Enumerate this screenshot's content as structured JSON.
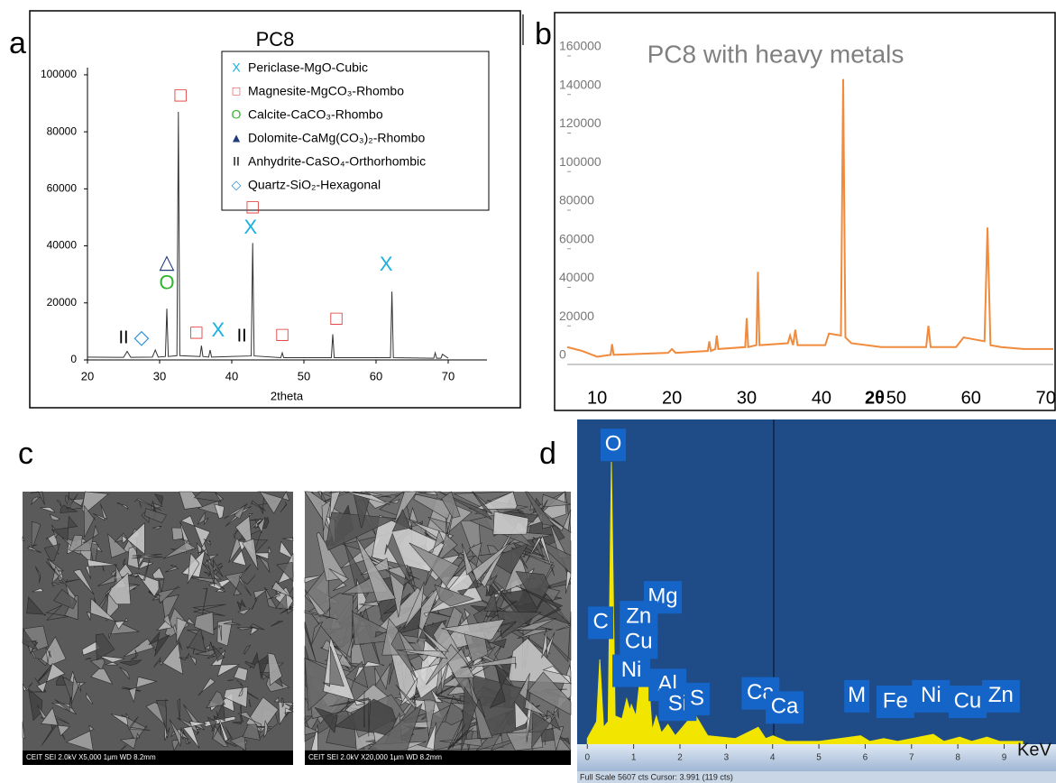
{
  "panels": {
    "c": "c",
    "sem_captions": [
      "CEIT    SEI   2.0kV   X5,000   1μm   WD 8.2mm",
      "CEIT    SEI   2.0kV   X20,000   1μm   WD 8.2mm"
    ]
  },
  "chart_data": [
    {
      "type": "line",
      "panel": "a",
      "title": "PC8",
      "xlabel": "2theta",
      "color": "#333333",
      "xlim": [
        20,
        75
      ],
      "ylim": [
        0,
        102500
      ],
      "xticks": [
        20,
        30,
        40,
        50,
        60,
        70
      ],
      "yticks": [
        0,
        20000,
        40000,
        60000,
        80000,
        100000
      ],
      "x": [
        20,
        25,
        25.5,
        26,
        29,
        29.4,
        29.8,
        30.8,
        31,
        31.2,
        32.4,
        32.6,
        32.8,
        35.6,
        35.8,
        36,
        36.8,
        37,
        37.2,
        42.7,
        42.9,
        43.1,
        46.8,
        47,
        47.2,
        53.8,
        54,
        54.2,
        62,
        62.2,
        62.4,
        68,
        68.2,
        68.4,
        69,
        69.2,
        70
      ],
      "values": [
        1000,
        900,
        3000,
        900,
        1000,
        3500,
        1000,
        1200,
        18000,
        1200,
        1500,
        87000,
        1500,
        1200,
        5000,
        1200,
        1000,
        3500,
        1000,
        1400,
        41000,
        1400,
        800,
        2500,
        800,
        800,
        9000,
        800,
        800,
        24000,
        800,
        600,
        2500,
        600,
        600,
        2000,
        600
      ],
      "legend": [
        {
          "symbol": "X",
          "color": "#1ab0e0",
          "text": "Periclase-MgO-Cubic"
        },
        {
          "symbol": "□",
          "color": "#e03030",
          "text": "Magnesite-MgCO₃-Rhombo"
        },
        {
          "symbol": "O",
          "color": "#2db52d",
          "text": "Calcite-CaCO₃-Rhombo"
        },
        {
          "symbol": "▲",
          "color": "#1f3b7a",
          "text": "Dolomite-CaMg(CO₃)₂-Rhombo"
        },
        {
          "symbol": "II",
          "color": "#000000",
          "text": "Anhydrite-CaSO₄-Orthorhombic"
        },
        {
          "symbol": "◇",
          "color": "#2b8fd6",
          "text": "Quartz-SiO₂-Hexagonal"
        }
      ],
      "annotations": [
        {
          "text": "□",
          "x": 32.9,
          "y": 92400,
          "color": "#e03030"
        },
        {
          "text": "II",
          "x": 25,
          "y": 7600,
          "color": "#000000"
        },
        {
          "text": "◇",
          "x": 27.5,
          "y": 7600,
          "color": "#2b8fd6"
        },
        {
          "text": "△",
          "x": 31,
          "y": 33900,
          "color": "#1f3b7a"
        },
        {
          "text": "O",
          "x": 31,
          "y": 26600,
          "color": "#2db52d"
        },
        {
          "text": "□",
          "x": 35.1,
          "y": 9200,
          "color": "#e03030"
        },
        {
          "text": "X",
          "x": 38.1,
          "y": 10100,
          "color": "#1ab0e0"
        },
        {
          "text": "II",
          "x": 41.4,
          "y": 8200,
          "color": "#000000"
        },
        {
          "text": "□",
          "x": 42.9,
          "y": 53200,
          "color": "#e03030"
        },
        {
          "text": "X",
          "x": 42.6,
          "y": 46200,
          "color": "#1ab0e0"
        },
        {
          "text": "□",
          "x": 47,
          "y": 8500,
          "color": "#e03030"
        },
        {
          "text": "□",
          "x": 54.5,
          "y": 14200,
          "color": "#e03030"
        },
        {
          "text": "X",
          "x": 61.4,
          "y": 33200,
          "color": "#1ab0e0"
        }
      ]
    },
    {
      "type": "line",
      "panel": "b",
      "title": "PC8 with heavy metals",
      "xlabel": "2θ",
      "color": "#f08a3c",
      "xlim": [
        6,
        71
      ],
      "ylim": [
        0,
        160000
      ],
      "xticks": [
        10,
        20,
        30,
        40,
        50,
        60,
        70
      ],
      "yticks": [
        0,
        20000,
        40000,
        60000,
        80000,
        100000,
        120000,
        140000,
        160000
      ],
      "x": [
        6,
        8,
        10,
        11.8,
        12,
        12.2,
        19.5,
        20,
        20.5,
        24.8,
        25,
        25.2,
        25.8,
        26,
        26.2,
        29.8,
        30,
        30.2,
        31.3,
        31.5,
        31.7,
        35.5,
        35.8,
        36.2,
        36.5,
        36.8,
        40.5,
        41,
        42.6,
        42.9,
        43.2,
        44,
        48,
        54,
        54.3,
        54.6,
        58,
        59,
        61.8,
        62.2,
        62.6,
        64,
        67,
        71
      ],
      "values": [
        9000,
        7000,
        4000,
        5000,
        10500,
        5000,
        6000,
        8000,
        6000,
        7000,
        12000,
        7000,
        8000,
        15000,
        8000,
        9000,
        24000,
        9000,
        10000,
        48000,
        10000,
        11000,
        15000,
        10000,
        18000,
        10000,
        10000,
        16000,
        15000,
        148000,
        14000,
        11000,
        9000,
        9000,
        20000,
        9000,
        9000,
        14000,
        12000,
        71000,
        10000,
        9000,
        8000,
        8000
      ]
    },
    {
      "type": "area",
      "panel": "d",
      "xlabel": "KeV",
      "color": "#f2e600",
      "footer": "Full Scale 5607 cts Cursor: 3.991 (119 cts)",
      "xlim": [
        -0.2,
        10.1
      ],
      "ylim": [
        0,
        115
      ],
      "xticks": [
        0,
        1,
        2,
        3,
        4,
        5,
        6,
        7,
        8,
        9
      ],
      "x": [
        0,
        0.2,
        0.27,
        0.35,
        0.45,
        0.52,
        0.6,
        0.75,
        0.85,
        0.92,
        0.95,
        1.05,
        1.25,
        1.4,
        1.49,
        1.6,
        1.74,
        1.9,
        2.31,
        2.6,
        3.2,
        3.69,
        3.85,
        4.01,
        4.3,
        5.0,
        5.9,
        6.1,
        6.4,
        6.7,
        7.47,
        7.7,
        8.04,
        8.3,
        8.63,
        8.9,
        9.4
      ],
      "values": [
        2,
        8,
        30,
        6,
        8,
        100,
        10,
        9,
        16,
        12,
        14,
        10,
        40,
        5,
        10,
        4,
        7,
        3,
        11,
        3,
        2,
        6,
        2,
        3,
        1,
        1,
        3,
        1,
        2,
        1,
        3.5,
        1,
        2.5,
        1,
        2.5,
        1,
        1
      ],
      "annotations": [
        {
          "text": "O",
          "x": 0.56,
          "y": 106
        },
        {
          "text": "Mg",
          "x": 1.63,
          "y": 52
        },
        {
          "text": "C",
          "x": 0.29,
          "y": 43
        },
        {
          "text": "Zn",
          "x": 1.11,
          "y": 45
        },
        {
          "text": "Cu",
          "x": 1.11,
          "y": 36
        },
        {
          "text": "Ni",
          "x": 0.95,
          "y": 26
        },
        {
          "text": "Al",
          "x": 1.73,
          "y": 21
        },
        {
          "text": "Si",
          "x": 1.95,
          "y": 14
        },
        {
          "text": "S",
          "x": 2.37,
          "y": 16
        },
        {
          "text": "Ca",
          "x": 3.74,
          "y": 18
        },
        {
          "text": "Ca",
          "x": 4.26,
          "y": 13
        },
        {
          "text": "M",
          "x": 5.82,
          "y": 17
        },
        {
          "text": "Fe",
          "x": 6.65,
          "y": 15
        },
        {
          "text": "Ni",
          "x": 7.42,
          "y": 17
        },
        {
          "text": "Cu",
          "x": 8.21,
          "y": 15
        },
        {
          "text": "Zn",
          "x": 8.93,
          "y": 17
        }
      ]
    }
  ]
}
